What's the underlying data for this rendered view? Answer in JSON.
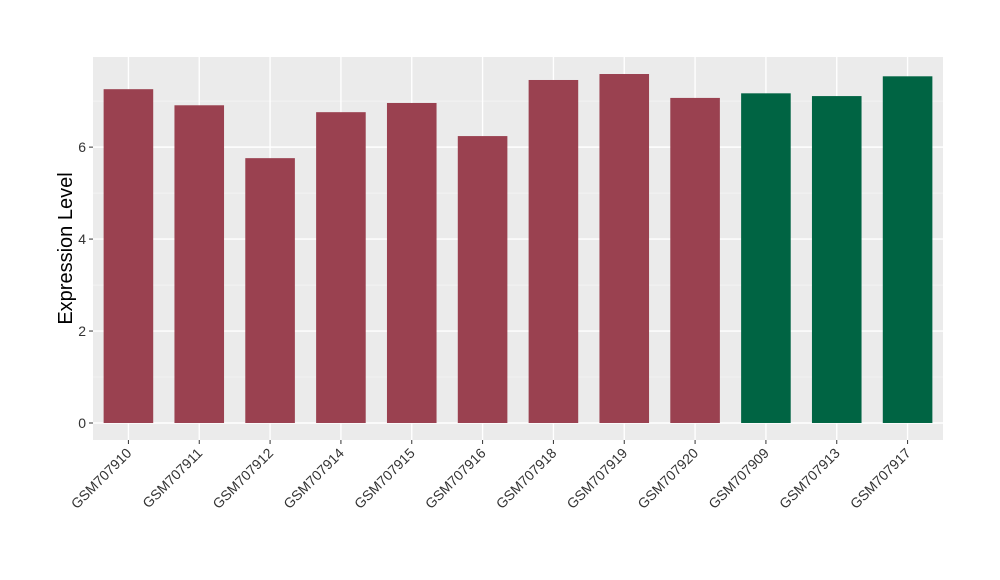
{
  "chart_data": {
    "type": "bar",
    "title": "",
    "xlabel": "",
    "ylabel": "Expression Level",
    "categories": [
      "GSM707910",
      "GSM707911",
      "GSM707912",
      "GSM707914",
      "GSM707915",
      "GSM707916",
      "GSM707918",
      "GSM707919",
      "GSM707920",
      "GSM707909",
      "GSM707913",
      "GSM707917"
    ],
    "values": [
      7.26,
      6.91,
      5.76,
      6.76,
      6.96,
      6.24,
      7.46,
      7.59,
      7.07,
      7.17,
      7.11,
      7.54
    ],
    "groups": [
      "a",
      "a",
      "a",
      "a",
      "a",
      "a",
      "a",
      "a",
      "a",
      "b",
      "b",
      "b"
    ],
    "group_colors": {
      "a": "#9a4150",
      "b": "#006443"
    },
    "ylim": [
      -0.37,
      7.96
    ],
    "yticks": [
      0,
      2,
      4,
      6
    ],
    "grid": true,
    "panel_background": "#ebebeb",
    "legend": "none"
  }
}
